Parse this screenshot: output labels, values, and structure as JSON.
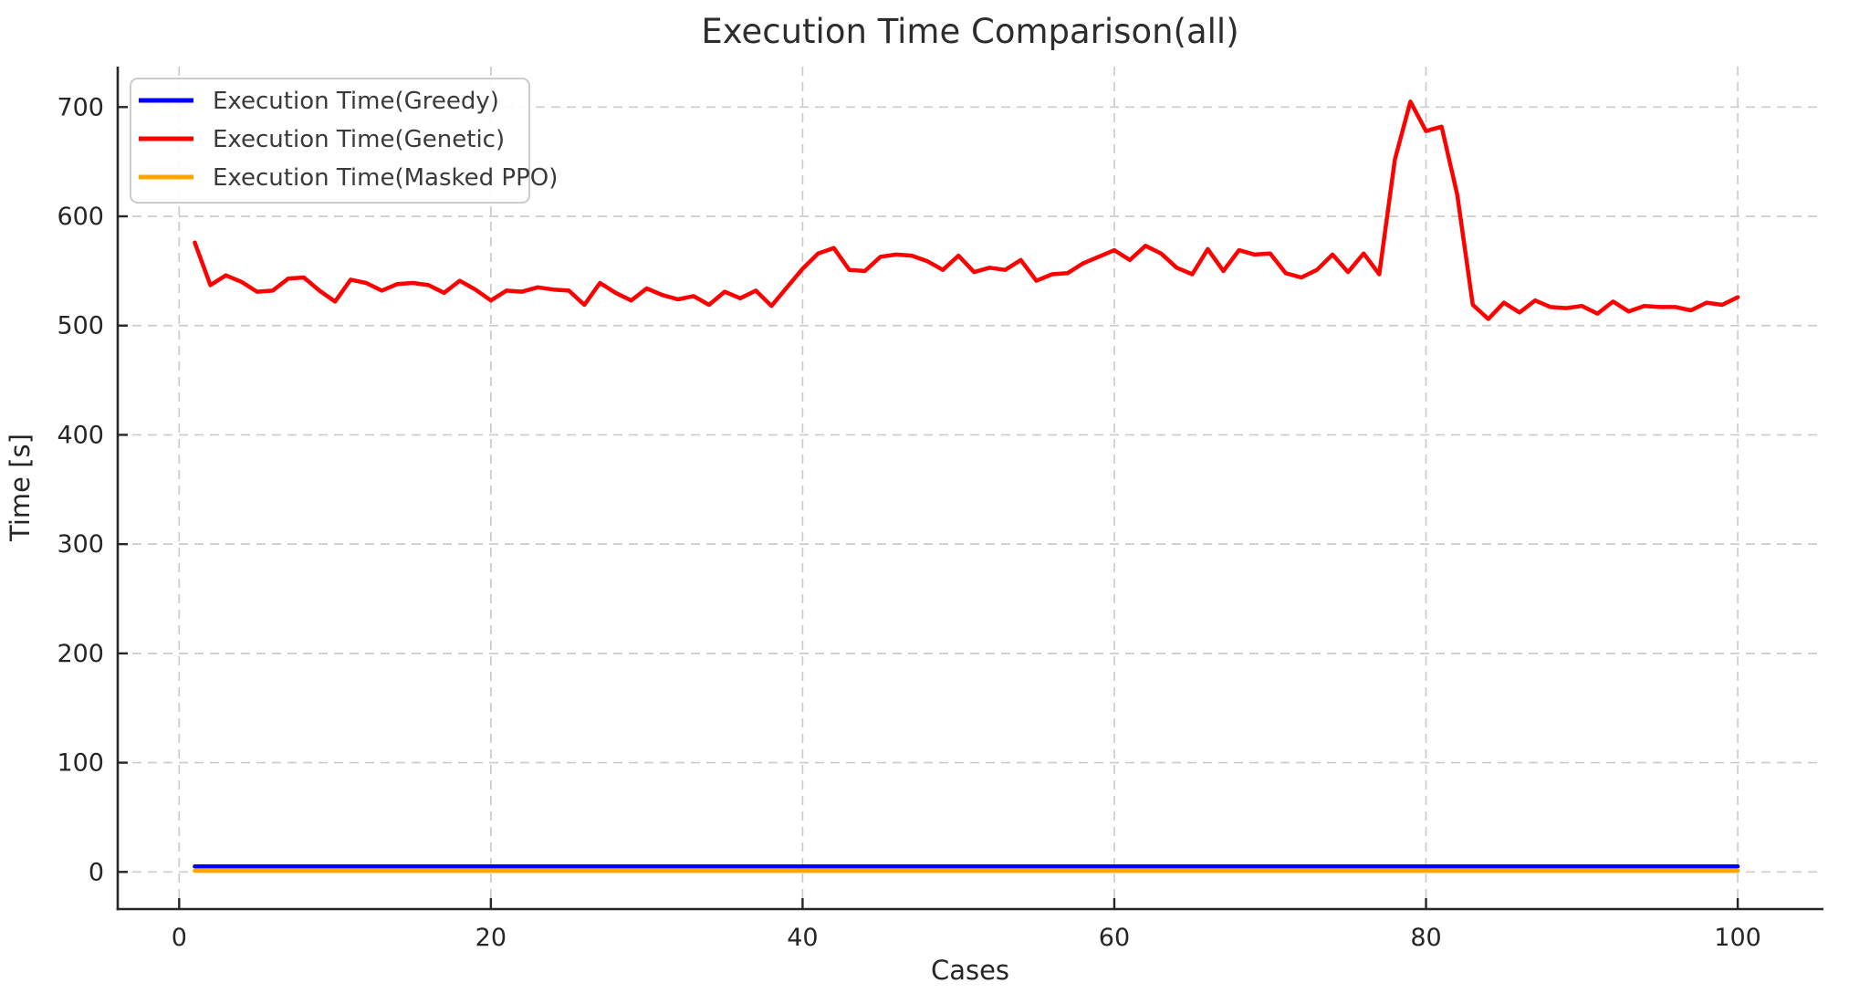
{
  "chart_data": {
    "type": "line",
    "title": "Execution Time Comparison(all)",
    "xlabel": "Cases",
    "ylabel": "Time [s]",
    "x": [
      1,
      2,
      3,
      4,
      5,
      6,
      7,
      8,
      9,
      10,
      11,
      12,
      13,
      14,
      15,
      16,
      17,
      18,
      19,
      20,
      21,
      22,
      23,
      24,
      25,
      26,
      27,
      28,
      29,
      30,
      31,
      32,
      33,
      34,
      35,
      36,
      37,
      38,
      39,
      40,
      41,
      42,
      43,
      44,
      45,
      46,
      47,
      48,
      49,
      50,
      51,
      52,
      53,
      54,
      55,
      56,
      57,
      58,
      59,
      60,
      61,
      62,
      63,
      64,
      65,
      66,
      67,
      68,
      69,
      70,
      71,
      72,
      73,
      74,
      75,
      76,
      77,
      78,
      79,
      80,
      81,
      82,
      83,
      84,
      85,
      86,
      87,
      88,
      89,
      90,
      91,
      92,
      93,
      94,
      95,
      96,
      97,
      98,
      99,
      100
    ],
    "series": [
      {
        "name": "Execution Time(Greedy)",
        "color": "#0000ff",
        "values": [
          5,
          5,
          5,
          5,
          5,
          5,
          5,
          5,
          5,
          5,
          5,
          5,
          5,
          5,
          5,
          5,
          5,
          5,
          5,
          5,
          5,
          5,
          5,
          5,
          5,
          5,
          5,
          5,
          5,
          5,
          5,
          5,
          5,
          5,
          5,
          5,
          5,
          5,
          5,
          5,
          5,
          5,
          5,
          5,
          5,
          5,
          5,
          5,
          5,
          5,
          5,
          5,
          5,
          5,
          5,
          5,
          5,
          5,
          5,
          5,
          5,
          5,
          5,
          5,
          5,
          5,
          5,
          5,
          5,
          5,
          5,
          5,
          5,
          5,
          5,
          5,
          5,
          5,
          5,
          5,
          5,
          5,
          5,
          5,
          5,
          5,
          5,
          5,
          5,
          5,
          5,
          5,
          5,
          5,
          5,
          5,
          5,
          5,
          5,
          5
        ]
      },
      {
        "name": "Execution Time(Genetic)",
        "color": "#ff0000",
        "values": [
          576,
          537,
          546,
          540,
          531,
          532,
          543,
          544,
          532,
          522,
          542,
          539,
          532,
          538,
          539,
          537,
          530,
          541,
          533,
          523,
          532,
          531,
          535,
          533,
          532,
          519,
          539,
          530,
          523,
          534,
          528,
          524,
          527,
          519,
          531,
          525,
          532,
          518,
          535,
          552,
          566,
          571,
          551,
          550,
          563,
          565,
          564,
          559,
          551,
          564,
          549,
          553,
          551,
          560,
          541,
          547,
          548,
          557,
          563,
          569,
          560,
          573,
          566,
          553,
          547,
          570,
          550,
          569,
          565,
          566,
          548,
          544,
          551,
          565,
          549,
          566,
          547,
          652,
          705,
          678,
          682,
          620,
          519,
          506,
          521,
          512,
          523,
          517,
          516,
          518,
          511,
          522,
          513,
          518,
          517,
          517,
          514,
          521,
          519,
          526
        ]
      },
      {
        "name": "Execution Time(Masked PPO)",
        "color": "#ffa500",
        "values": [
          1,
          1,
          1,
          1,
          1,
          1,
          1,
          1,
          1,
          1,
          1,
          1,
          1,
          1,
          1,
          1,
          1,
          1,
          1,
          1,
          1,
          1,
          1,
          1,
          1,
          1,
          1,
          1,
          1,
          1,
          1,
          1,
          1,
          1,
          1,
          1,
          1,
          1,
          1,
          1,
          1,
          1,
          1,
          1,
          1,
          1,
          1,
          1,
          1,
          1,
          1,
          1,
          1,
          1,
          1,
          1,
          1,
          1,
          1,
          1,
          1,
          1,
          1,
          1,
          1,
          1,
          1,
          1,
          1,
          1,
          1,
          1,
          1,
          1,
          1,
          1,
          1,
          1,
          1,
          1,
          1,
          1,
          1,
          1,
          1,
          1,
          1,
          1,
          1,
          1,
          1,
          1,
          1,
          1,
          1,
          1,
          1,
          1,
          1,
          1
        ]
      }
    ],
    "xticks": [
      0,
      20,
      40,
      60,
      80,
      100
    ],
    "yticks": [
      0,
      100,
      200,
      300,
      400,
      500,
      600,
      700
    ],
    "xlim": [
      -4,
      105.5
    ],
    "ylim": [
      -34,
      737
    ],
    "grid": true,
    "grid_color": "#cccccc",
    "spine_color": "#262626",
    "legend_position": "upper left"
  }
}
